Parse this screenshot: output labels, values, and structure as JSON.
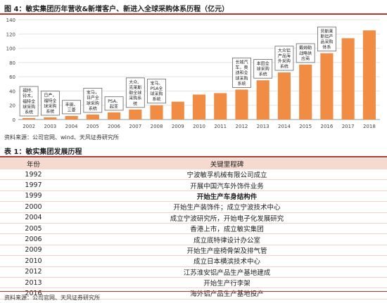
{
  "figure": {
    "title": "图 4：敏实集团历年营收&新增客户、新进入全球采购体系历程（亿元）",
    "source": "资料来源：公司官网、wind、天风证券研究所"
  },
  "chart_data": {
    "type": "bar",
    "categories": [
      "2002",
      "2003",
      "2004",
      "2005",
      "2006",
      "2007",
      "2008",
      "2009",
      "2010",
      "2011",
      "2012",
      "2013",
      "2014",
      "2015",
      "2016",
      "2017",
      "2018"
    ],
    "values": [
      2,
      3,
      5,
      7,
      10,
      14,
      20,
      25,
      35,
      37,
      42,
      55,
      66,
      77,
      93,
      114,
      125
    ],
    "ylim": [
      0,
      140
    ],
    "yticks": [
      0,
      20,
      40,
      60,
      80,
      100,
      120,
      140
    ],
    "grid": true,
    "bar_color": "#f08c43",
    "annotations": [
      {
        "category": "2002",
        "lines": [
          "福特、",
          "铃木，",
          "福特全",
          "球采购",
          "系统"
        ]
      },
      {
        "category": "2003",
        "lines": [
          "日产，",
          "福特全",
          "球采购",
          "系统"
        ]
      },
      {
        "category": "2004",
        "lines": [
          "丰田、",
          "三菱"
        ]
      },
      {
        "category": "2005",
        "lines": [
          "宝马，",
          "日产全",
          "球采购",
          "系统"
        ]
      },
      {
        "category": "2006",
        "lines": [
          "PSA、",
          "起亚"
        ]
      },
      {
        "category": "2007",
        "lines": [
          "大众、",
          "克莱斯",
          "勒全球",
          "采购系",
          "统"
        ]
      },
      {
        "category": "2008",
        "lines": [
          "宝马、",
          "PSA全",
          "球采购",
          "系统"
        ]
      },
      {
        "category": "2012",
        "lines": [
          "长城汽",
          "车，奥",
          "迪和全",
          "球采购",
          "系统"
        ]
      },
      {
        "category": "2013",
        "lines": [
          "本田全",
          "球采购",
          "系统"
        ]
      },
      {
        "category": "2014",
        "lines": [
          "大众铝",
          "产品海",
          "外采购",
          "系统"
        ]
      },
      {
        "category": "2015",
        "lines": [
          "戴姆勒",
          "战略供",
          "应商"
        ]
      },
      {
        "category": "2016",
        "lines": [
          "劳斯莱",
          "斯铝产",
          "品采购",
          "体系"
        ]
      }
    ]
  },
  "table": {
    "title": "表 1：敏实集团发展历程",
    "headers": {
      "year": "年份",
      "milestone": "关键里程碑"
    },
    "rows": [
      {
        "year": "1992",
        "milestone": "宁波敏孚机械有限公司成立"
      },
      {
        "year": "1997",
        "milestone": "开展中国汽车外饰件业务"
      },
      {
        "year": "1999",
        "milestone": "开始生产车身结构件"
      },
      {
        "year": "2000",
        "milestone": "开始生产装饰件；成立宁波技术中心"
      },
      {
        "year": "2004",
        "milestone": "成立宁波研究所，开始电子化发展研究"
      },
      {
        "year": "2005",
        "milestone": "香港上市，成立敏实集团"
      },
      {
        "year": "2006",
        "milestone": "成立底特律设计办公室"
      },
      {
        "year": "2009",
        "milestone": "开始生产座椅骨架及排气管"
      },
      {
        "year": "2010",
        "milestone": "成立日本横滨技术中心"
      },
      {
        "year": "2012",
        "milestone": "江苏淮安铝产品生产基地建成"
      },
      {
        "year": "2013",
        "milestone": "开始生产行李架"
      },
      {
        "year": "2016",
        "milestone": "海外铝产品生产基地投产"
      }
    ],
    "source": "资料来源：公司官网、天风证券研究所"
  }
}
